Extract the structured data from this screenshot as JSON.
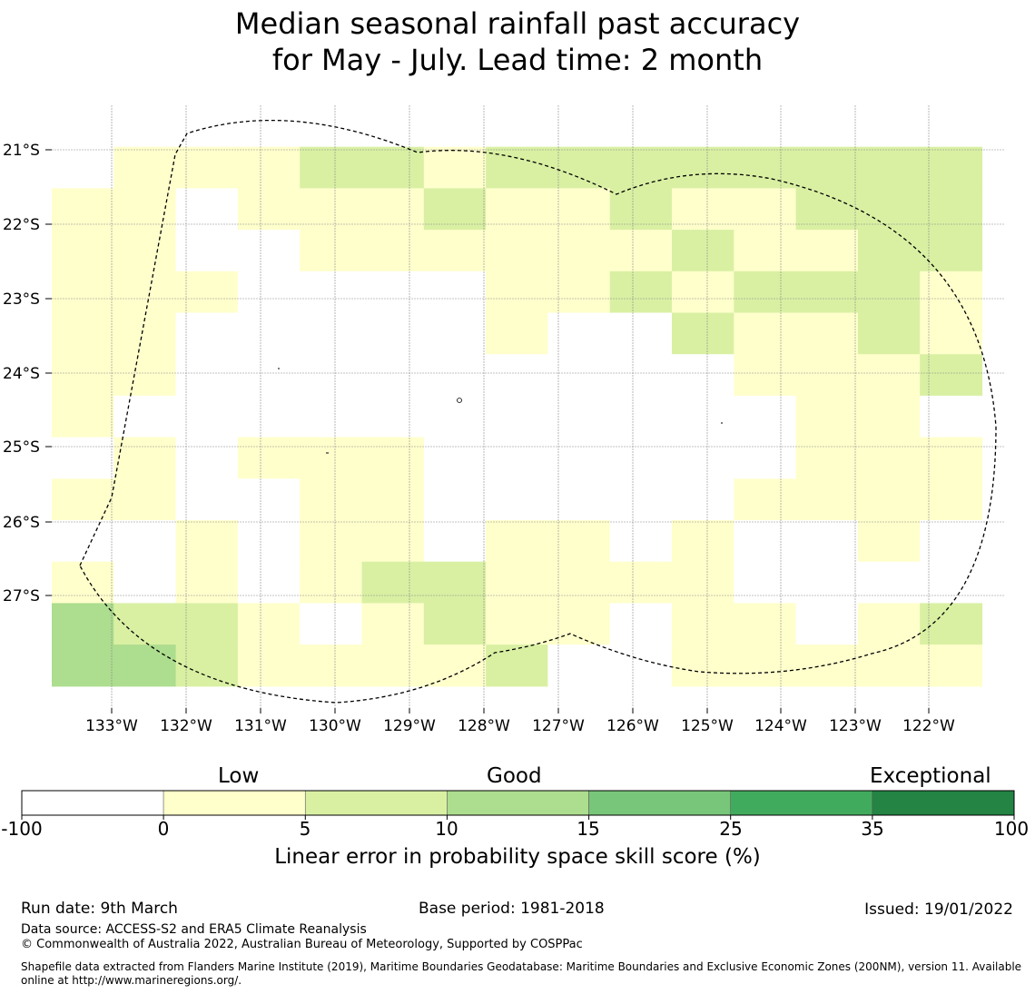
{
  "title": {
    "line1": "Median seasonal rainfall past accuracy",
    "line2": "for May - July. Lead time: 2 month"
  },
  "map": {
    "lon_labels": [
      "133°W",
      "132°W",
      "131°W",
      "130°W",
      "129°W",
      "128°W",
      "127°W",
      "126°W",
      "125°W",
      "124°W",
      "123°W",
      "122°W"
    ],
    "lat_labels": [
      "21°S",
      "22°S",
      "23°S",
      "24°S",
      "25°S",
      "26°S",
      "27°S"
    ],
    "grid_cols": 15,
    "grid_rows": 14,
    "skill_grid": [
      [
        0,
        0,
        0,
        0,
        0,
        0,
        0,
        0,
        0,
        0,
        0,
        0,
        0,
        0,
        0
      ],
      [
        0,
        1,
        1,
        1,
        2,
        2,
        1,
        2,
        2,
        2,
        2,
        2,
        2,
        2,
        2
      ],
      [
        1,
        1,
        0,
        1,
        1,
        1,
        2,
        1,
        1,
        2,
        1,
        1,
        2,
        2,
        2
      ],
      [
        1,
        1,
        0,
        0,
        1,
        1,
        1,
        1,
        1,
        1,
        2,
        1,
        1,
        2,
        2
      ],
      [
        1,
        1,
        1,
        0,
        0,
        0,
        0,
        1,
        1,
        2,
        1,
        2,
        2,
        2,
        1
      ],
      [
        1,
        1,
        0,
        0,
        0,
        0,
        0,
        1,
        0,
        0,
        2,
        1,
        1,
        2,
        1
      ],
      [
        1,
        1,
        0,
        0,
        0,
        0,
        0,
        0,
        0,
        0,
        0,
        1,
        1,
        1,
        2
      ],
      [
        1,
        0,
        0,
        0,
        0,
        0,
        0,
        0,
        0,
        0,
        0,
        0,
        1,
        1,
        0
      ],
      [
        0,
        1,
        0,
        1,
        1,
        1,
        0,
        0,
        0,
        0,
        0,
        0,
        1,
        1,
        1
      ],
      [
        1,
        1,
        0,
        0,
        1,
        1,
        0,
        0,
        0,
        0,
        0,
        1,
        1,
        1,
        1
      ],
      [
        0,
        0,
        1,
        0,
        1,
        1,
        0,
        1,
        1,
        0,
        1,
        0,
        0,
        1,
        0
      ],
      [
        1,
        0,
        1,
        0,
        1,
        2,
        2,
        1,
        1,
        1,
        1,
        0,
        0,
        0,
        0
      ],
      [
        3,
        2,
        2,
        1,
        0,
        1,
        2,
        1,
        1,
        0,
        1,
        1,
        0,
        1,
        2
      ],
      [
        3,
        3,
        2,
        1,
        1,
        1,
        1,
        2,
        0,
        0,
        1,
        1,
        1,
        1,
        1
      ]
    ]
  },
  "colorbar": {
    "categories": [
      "Low",
      "Good",
      "Exceptional"
    ],
    "ticks": [
      "-100",
      "0",
      "5",
      "10",
      "15",
      "25",
      "35",
      "100"
    ],
    "colors": [
      "#ffffff",
      "#ffffcc",
      "#d9f0a3",
      "#addd8e",
      "#78c679",
      "#41ab5d",
      "#238443"
    ],
    "label": "Linear error in probability space skill score (%)"
  },
  "footer": {
    "run_date": "Run date: 9th March",
    "base_period": "Base period: 1981-2018",
    "issued": "Issued: 19/01/2022",
    "data_source": "Data source: ACCESS-S2 and ERA5 Climate Reanalysis",
    "copyright": "© Commonwealth of Australia 2022, Australian Bureau of Meteorology, Supported by COSPPac",
    "shapefile": "Shapefile data extracted from Flanders Marine Institute (2019), Maritime Boundaries Geodatabase: Maritime Boundaries and Exclusive Economic Zones (200NM), version 11. Available online at http://www.marineregions.org/."
  }
}
